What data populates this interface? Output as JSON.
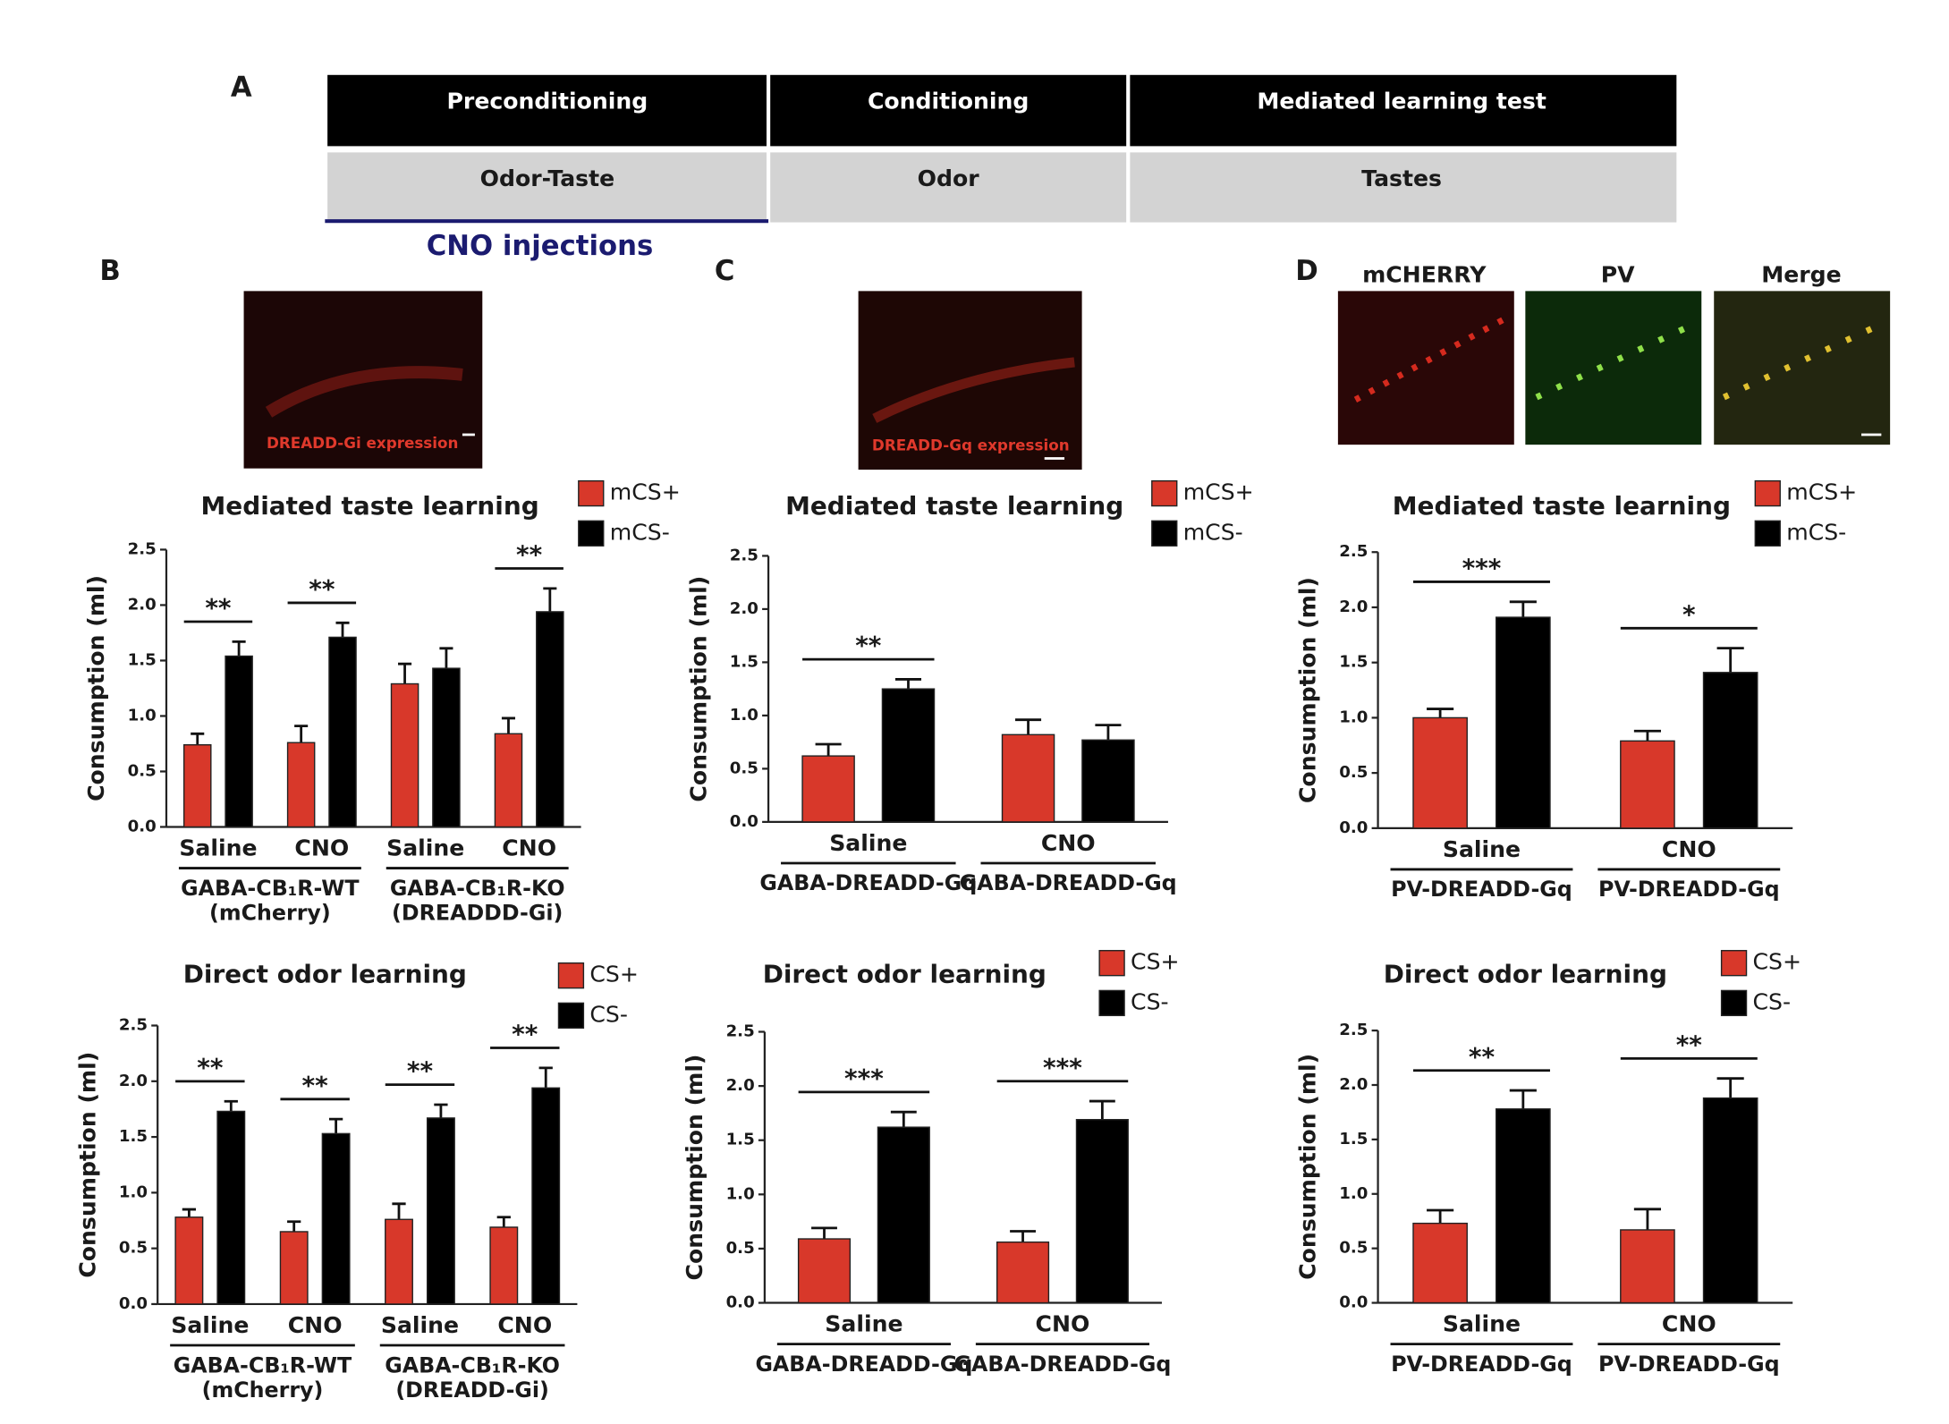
{
  "panel_labels": [
    "A",
    "B",
    "C",
    "D"
  ],
  "protocol": {
    "headers": [
      "Preconditioning",
      "Conditioning",
      "Mediated learning test"
    ],
    "cells": [
      "Odor-Taste",
      "Odor",
      "Tastes"
    ],
    "note": "CNO injections"
  },
  "images": {
    "b_caption": "DREADD-Gi expression",
    "c_caption": "DREADD-Gq expression",
    "d_labels": [
      "mCHERRY",
      "PV",
      "Merge"
    ]
  },
  "chart_data": [
    {
      "type": "bar",
      "title": "Mediated taste learning",
      "ylabel": "Consumption (ml)",
      "ylim": [
        0,
        2.5
      ],
      "yticks": [
        {
          "value": 0,
          "label": "0.0"
        },
        0.5,
        {
          "value": 1,
          "label": "1.0"
        },
        1.5,
        {
          "value": 2,
          "label": "2.0"
        },
        2.5
      ],
      "categories": [
        "Saline",
        "CNO",
        "Saline",
        "CNO"
      ],
      "category_groups": [
        [
          "GABA-CB₁R-WT",
          "(mCherry)"
        ],
        [
          "GABA-CB₁R-KO",
          "(DREADDD-Gi)"
        ]
      ],
      "significance": [
        "**",
        "**",
        null,
        "**"
      ],
      "series": [
        {
          "name": "mCS+",
          "color": "#d8382a",
          "values": [
            0.74,
            0.76,
            1.29,
            0.84
          ],
          "errors": [
            0.1,
            0.15,
            0.18,
            0.14
          ]
        },
        {
          "name": "mCS-",
          "color": "#000000",
          "values": [
            1.54,
            1.71,
            1.43,
            1.94
          ],
          "errors": [
            0.13,
            0.13,
            0.18,
            0.21
          ]
        }
      ]
    },
    {
      "type": "bar",
      "title": "Direct odor learning",
      "ylabel": "Consumption (ml)",
      "ylim": [
        0,
        2.5
      ],
      "yticks": [
        {
          "value": 0,
          "label": "0.0"
        },
        0.5,
        {
          "value": 1,
          "label": "1.0"
        },
        1.5,
        {
          "value": 2,
          "label": "2.0"
        },
        2.5
      ],
      "categories": [
        "Saline",
        "CNO",
        "Saline",
        "CNO"
      ],
      "category_groups": [
        [
          "GABA-CB₁R-WT",
          "(mCherry)"
        ],
        [
          "GABA-CB₁R-KO",
          "(DREADD-Gi)"
        ]
      ],
      "significance": [
        "**",
        "**",
        "**",
        "**"
      ],
      "series": [
        {
          "name": "CS+",
          "color": "#d8382a",
          "values": [
            0.78,
            0.65,
            0.76,
            0.69
          ],
          "errors": [
            0.07,
            0.09,
            0.14,
            0.09
          ]
        },
        {
          "name": "CS-",
          "color": "#000000",
          "values": [
            1.73,
            1.53,
            1.67,
            1.94
          ],
          "errors": [
            0.09,
            0.13,
            0.12,
            0.18
          ]
        }
      ]
    },
    {
      "type": "bar",
      "title": "Mediated taste learning",
      "ylabel": "Consumption (ml)",
      "ylim": [
        0,
        2.5
      ],
      "yticks": [
        {
          "value": 0,
          "label": "0.0"
        },
        0.5,
        {
          "value": 1,
          "label": "1.0"
        },
        1.5,
        {
          "value": 2,
          "label": "2.0"
        },
        2.5
      ],
      "categories": [
        "Saline",
        "CNO"
      ],
      "category_groups": [
        [
          "GABA-DREADD-Gq"
        ],
        [
          "GABA-DREADD-Gq"
        ]
      ],
      "significance": [
        "**",
        null
      ],
      "series": [
        {
          "name": "mCS+",
          "color": "#d8382a",
          "values": [
            0.62,
            0.82
          ],
          "errors": [
            0.11,
            0.14
          ]
        },
        {
          "name": "mCS-",
          "color": "#000000",
          "values": [
            1.25,
            0.77
          ],
          "errors": [
            0.09,
            0.14
          ]
        }
      ]
    },
    {
      "type": "bar",
      "title": "Direct odor learning",
      "ylabel": "Consumption (ml)",
      "ylim": [
        0,
        2.5
      ],
      "yticks": [
        {
          "value": 0,
          "label": "0.0"
        },
        0.5,
        {
          "value": 1,
          "label": "1.0"
        },
        1.5,
        {
          "value": 2,
          "label": "2.0"
        },
        2.5
      ],
      "categories": [
        "Saline",
        "CNO"
      ],
      "category_groups": [
        [
          "GABA-DREADD-Gq"
        ],
        [
          "GABA-DREADD-Gq"
        ]
      ],
      "significance": [
        "***",
        "***"
      ],
      "series": [
        {
          "name": "CS+",
          "color": "#d8382a",
          "values": [
            0.59,
            0.56
          ],
          "errors": [
            0.1,
            0.1
          ]
        },
        {
          "name": "CS-",
          "color": "#000000",
          "values": [
            1.62,
            1.69
          ],
          "errors": [
            0.14,
            0.17
          ]
        }
      ]
    },
    {
      "type": "bar",
      "title": "Mediated taste learning",
      "ylabel": "Consumption (ml)",
      "ylim": [
        0,
        2.5
      ],
      "yticks": [
        {
          "value": 0,
          "label": "0.0"
        },
        0.5,
        {
          "value": 1,
          "label": "1.0"
        },
        1.5,
        {
          "value": 2,
          "label": "2.0"
        },
        2.5
      ],
      "categories": [
        "Saline",
        "CNO"
      ],
      "category_groups": [
        [
          "PV-DREADD-Gq"
        ],
        [
          "PV-DREADD-Gq"
        ]
      ],
      "significance": [
        "***",
        "*"
      ],
      "series": [
        {
          "name": "mCS+",
          "color": "#d8382a",
          "values": [
            1.0,
            0.79
          ],
          "errors": [
            0.08,
            0.09
          ]
        },
        {
          "name": "mCS-",
          "color": "#000000",
          "values": [
            1.91,
            1.41
          ],
          "errors": [
            0.14,
            0.22
          ]
        }
      ]
    },
    {
      "type": "bar",
      "title": "Direct odor learning",
      "ylabel": "Consumption (ml)",
      "ylim": [
        0,
        2.5
      ],
      "yticks": [
        {
          "value": 0,
          "label": "0.0"
        },
        0.5,
        {
          "value": 1,
          "label": "1.0"
        },
        1.5,
        {
          "value": 2,
          "label": "2.0"
        },
        2.5
      ],
      "categories": [
        "Saline",
        "CNO"
      ],
      "category_groups": [
        [
          "PV-DREADD-Gq"
        ],
        [
          "PV-DREADD-Gq"
        ]
      ],
      "significance": [
        "**",
        "**"
      ],
      "series": [
        {
          "name": "CS+",
          "color": "#d8382a",
          "values": [
            0.73,
            0.67
          ],
          "errors": [
            0.12,
            0.19
          ]
        },
        {
          "name": "CS-",
          "color": "#000000",
          "values": [
            1.78,
            1.88
          ],
          "errors": [
            0.17,
            0.18
          ]
        }
      ]
    }
  ]
}
